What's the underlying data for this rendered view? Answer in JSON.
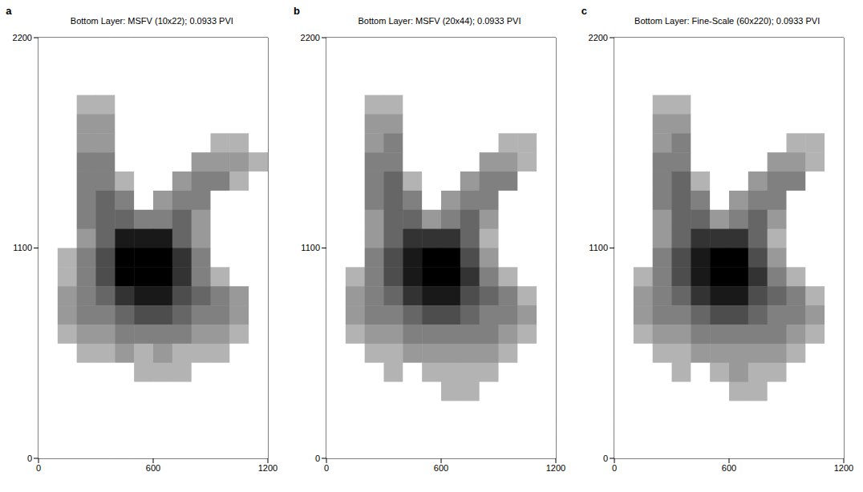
{
  "chart_data": [
    {
      "type": "heatmap",
      "label": "a",
      "title": "Bottom Layer: MSFV (10x22); 0.0933 PVI",
      "xlim": [
        0,
        1200
      ],
      "ylim": [
        0,
        2200
      ],
      "xticks": [
        0,
        600,
        1200
      ],
      "yticks": [
        0,
        1100,
        2200
      ],
      "cells": [
        [
          0,
          0,
          0,
          0,
          0,
          0,
          0,
          0,
          0,
          0,
          0,
          0
        ],
        [
          0,
          0,
          0,
          0,
          0,
          0,
          0,
          0,
          0,
          0,
          0,
          0
        ],
        [
          0,
          0,
          0,
          0,
          0,
          0,
          0,
          0,
          0,
          0,
          0,
          0
        ],
        [
          0,
          0,
          0.3,
          0.3,
          0,
          0,
          0,
          0,
          0,
          0,
          0,
          0
        ],
        [
          0,
          0,
          0.4,
          0.4,
          0,
          0,
          0,
          0,
          0,
          0,
          0,
          0
        ],
        [
          0,
          0,
          0.4,
          0.4,
          0,
          0,
          0,
          0,
          0,
          0.3,
          0.3,
          0
        ],
        [
          0,
          0,
          0.5,
          0.5,
          0,
          0,
          0,
          0,
          0.4,
          0.4,
          0.4,
          0.3
        ],
        [
          0,
          0,
          0.5,
          0.5,
          0.3,
          0,
          0,
          0.4,
          0.5,
          0.5,
          0.3,
          0
        ],
        [
          0,
          0,
          0.5,
          0.6,
          0.5,
          0,
          0.4,
          0.5,
          0.5,
          0,
          0,
          0
        ],
        [
          0,
          0,
          0.5,
          0.6,
          0.6,
          0.5,
          0.5,
          0.6,
          0.4,
          0,
          0,
          0
        ],
        [
          0,
          0,
          0.4,
          0.6,
          0.9,
          0.9,
          0.9,
          0.6,
          0.4,
          0,
          0,
          0
        ],
        [
          0,
          0.3,
          0.5,
          0.7,
          1,
          1,
          1,
          0.8,
          0.5,
          0,
          0,
          0
        ],
        [
          0,
          0.3,
          0.5,
          0.7,
          1,
          1,
          1,
          0.8,
          0.5,
          0.3,
          0,
          0
        ],
        [
          0,
          0.4,
          0.5,
          0.6,
          0.8,
          0.9,
          0.9,
          0.7,
          0.6,
          0.5,
          0.4,
          0
        ],
        [
          0,
          0.4,
          0.5,
          0.5,
          0.6,
          0.7,
          0.7,
          0.6,
          0.5,
          0.5,
          0.4,
          0
        ],
        [
          0,
          0.3,
          0.4,
          0.4,
          0.5,
          0.5,
          0.5,
          0.5,
          0.4,
          0.4,
          0.3,
          0
        ],
        [
          0,
          0,
          0.3,
          0.3,
          0.4,
          0.3,
          0.4,
          0.3,
          0.3,
          0.3,
          0,
          0
        ],
        [
          0,
          0,
          0,
          0,
          0,
          0.3,
          0.3,
          0.3,
          0,
          0,
          0,
          0
        ],
        [
          0,
          0,
          0,
          0,
          0,
          0,
          0,
          0,
          0,
          0,
          0,
          0
        ],
        [
          0,
          0,
          0,
          0,
          0,
          0,
          0,
          0,
          0,
          0,
          0,
          0
        ],
        [
          0,
          0,
          0,
          0,
          0,
          0,
          0,
          0,
          0,
          0,
          0,
          0
        ],
        [
          0,
          0,
          0,
          0,
          0,
          0,
          0,
          0,
          0,
          0,
          0,
          0
        ]
      ]
    },
    {
      "type": "heatmap",
      "label": "b",
      "title": "Bottom Layer: MSFV (20x44); 0.0933 PVI",
      "xlim": [
        0,
        1200
      ],
      "ylim": [
        0,
        2200
      ],
      "xticks": [
        0,
        600,
        1200
      ],
      "yticks": [
        0,
        1100,
        2200
      ],
      "cells": [
        [
          0,
          0,
          0,
          0,
          0,
          0,
          0,
          0,
          0,
          0,
          0,
          0
        ],
        [
          0,
          0,
          0,
          0,
          0,
          0,
          0,
          0,
          0,
          0,
          0,
          0
        ],
        [
          0,
          0,
          0,
          0,
          0,
          0,
          0,
          0,
          0,
          0,
          0,
          0
        ],
        [
          0,
          0,
          0.3,
          0.3,
          0,
          0,
          0,
          0,
          0,
          0,
          0,
          0
        ],
        [
          0,
          0,
          0.4,
          0.4,
          0,
          0,
          0,
          0,
          0,
          0,
          0,
          0
        ],
        [
          0,
          0,
          0.4,
          0.5,
          0,
          0,
          0,
          0,
          0,
          0.3,
          0.3,
          0
        ],
        [
          0,
          0,
          0.5,
          0.5,
          0,
          0,
          0,
          0,
          0.4,
          0.4,
          0.3,
          0
        ],
        [
          0,
          0,
          0.5,
          0.6,
          0.3,
          0,
          0,
          0.4,
          0.5,
          0.5,
          0,
          0
        ],
        [
          0,
          0,
          0.5,
          0.6,
          0.5,
          0,
          0.4,
          0.5,
          0.5,
          0,
          0,
          0
        ],
        [
          0,
          0,
          0.4,
          0.6,
          0.6,
          0.4,
          0.5,
          0.6,
          0.4,
          0,
          0,
          0
        ],
        [
          0,
          0,
          0.4,
          0.6,
          0.8,
          0.8,
          0.8,
          0.6,
          0.3,
          0,
          0,
          0
        ],
        [
          0,
          0,
          0.5,
          0.7,
          0.9,
          1,
          1,
          0.7,
          0.4,
          0,
          0,
          0
        ],
        [
          0,
          0.3,
          0.5,
          0.7,
          0.9,
          1,
          1,
          0.8,
          0.5,
          0.3,
          0,
          0
        ],
        [
          0,
          0.4,
          0.5,
          0.6,
          0.8,
          0.9,
          0.9,
          0.7,
          0.6,
          0.5,
          0.3,
          0
        ],
        [
          0,
          0.4,
          0.5,
          0.5,
          0.6,
          0.7,
          0.7,
          0.6,
          0.5,
          0.5,
          0.4,
          0
        ],
        [
          0,
          0.3,
          0.4,
          0.4,
          0.5,
          0.5,
          0.5,
          0.5,
          0.5,
          0.4,
          0.3,
          0
        ],
        [
          0,
          0,
          0.3,
          0.3,
          0.4,
          0.4,
          0.4,
          0.4,
          0.4,
          0.3,
          0,
          0
        ],
        [
          0,
          0,
          0,
          0.3,
          0,
          0.3,
          0.3,
          0.3,
          0.3,
          0,
          0,
          0
        ],
        [
          0,
          0,
          0,
          0,
          0,
          0,
          0.3,
          0.3,
          0,
          0,
          0,
          0
        ],
        [
          0,
          0,
          0,
          0,
          0,
          0,
          0,
          0,
          0,
          0,
          0,
          0
        ],
        [
          0,
          0,
          0,
          0,
          0,
          0,
          0,
          0,
          0,
          0,
          0,
          0
        ],
        [
          0,
          0,
          0,
          0,
          0,
          0,
          0,
          0,
          0,
          0,
          0,
          0
        ]
      ]
    },
    {
      "type": "heatmap",
      "label": "c",
      "title": "Bottom Layer: Fine-Scale (60x220); 0.0933 PVI",
      "xlim": [
        0,
        1200
      ],
      "ylim": [
        0,
        2200
      ],
      "xticks": [
        0,
        600,
        1200
      ],
      "yticks": [
        0,
        1100,
        2200
      ],
      "cells": [
        [
          0,
          0,
          0,
          0,
          0,
          0,
          0,
          0,
          0,
          0,
          0,
          0
        ],
        [
          0,
          0,
          0,
          0,
          0,
          0,
          0,
          0,
          0,
          0,
          0,
          0
        ],
        [
          0,
          0,
          0,
          0,
          0,
          0,
          0,
          0,
          0,
          0,
          0,
          0
        ],
        [
          0,
          0,
          0.3,
          0.3,
          0,
          0,
          0,
          0,
          0,
          0,
          0,
          0
        ],
        [
          0,
          0,
          0.4,
          0.4,
          0,
          0,
          0,
          0,
          0,
          0,
          0,
          0
        ],
        [
          0,
          0,
          0.4,
          0.5,
          0,
          0,
          0,
          0,
          0,
          0.3,
          0.3,
          0
        ],
        [
          0,
          0,
          0.5,
          0.5,
          0,
          0,
          0,
          0,
          0.4,
          0.4,
          0.3,
          0
        ],
        [
          0,
          0,
          0.5,
          0.6,
          0.3,
          0,
          0,
          0.4,
          0.5,
          0.5,
          0,
          0
        ],
        [
          0,
          0,
          0.5,
          0.6,
          0.5,
          0,
          0.4,
          0.5,
          0.5,
          0,
          0,
          0
        ],
        [
          0,
          0,
          0.4,
          0.6,
          0.6,
          0.4,
          0.5,
          0.6,
          0.4,
          0,
          0,
          0
        ],
        [
          0,
          0,
          0.4,
          0.6,
          0.8,
          0.8,
          0.8,
          0.6,
          0.3,
          0,
          0,
          0
        ],
        [
          0,
          0,
          0.5,
          0.7,
          0.9,
          1,
          1,
          0.7,
          0.4,
          0,
          0,
          0
        ],
        [
          0,
          0.3,
          0.5,
          0.7,
          0.9,
          1,
          1,
          0.8,
          0.5,
          0.3,
          0,
          0
        ],
        [
          0,
          0.4,
          0.5,
          0.6,
          0.8,
          0.9,
          0.9,
          0.7,
          0.6,
          0.5,
          0.3,
          0
        ],
        [
          0,
          0.4,
          0.5,
          0.5,
          0.6,
          0.7,
          0.7,
          0.6,
          0.5,
          0.5,
          0.4,
          0
        ],
        [
          0,
          0.3,
          0.4,
          0.4,
          0.5,
          0.5,
          0.5,
          0.5,
          0.5,
          0.4,
          0.3,
          0
        ],
        [
          0,
          0,
          0.3,
          0.3,
          0.4,
          0.4,
          0.4,
          0.4,
          0.4,
          0.3,
          0,
          0
        ],
        [
          0,
          0,
          0,
          0.3,
          0,
          0.3,
          0.4,
          0.3,
          0.3,
          0,
          0,
          0
        ],
        [
          0,
          0,
          0,
          0,
          0,
          0,
          0.3,
          0.3,
          0,
          0,
          0,
          0
        ],
        [
          0,
          0,
          0,
          0,
          0,
          0,
          0,
          0,
          0,
          0,
          0,
          0
        ],
        [
          0,
          0,
          0,
          0,
          0,
          0,
          0,
          0,
          0,
          0,
          0,
          0
        ],
        [
          0,
          0,
          0,
          0,
          0,
          0,
          0,
          0,
          0,
          0,
          0,
          0
        ]
      ]
    }
  ]
}
